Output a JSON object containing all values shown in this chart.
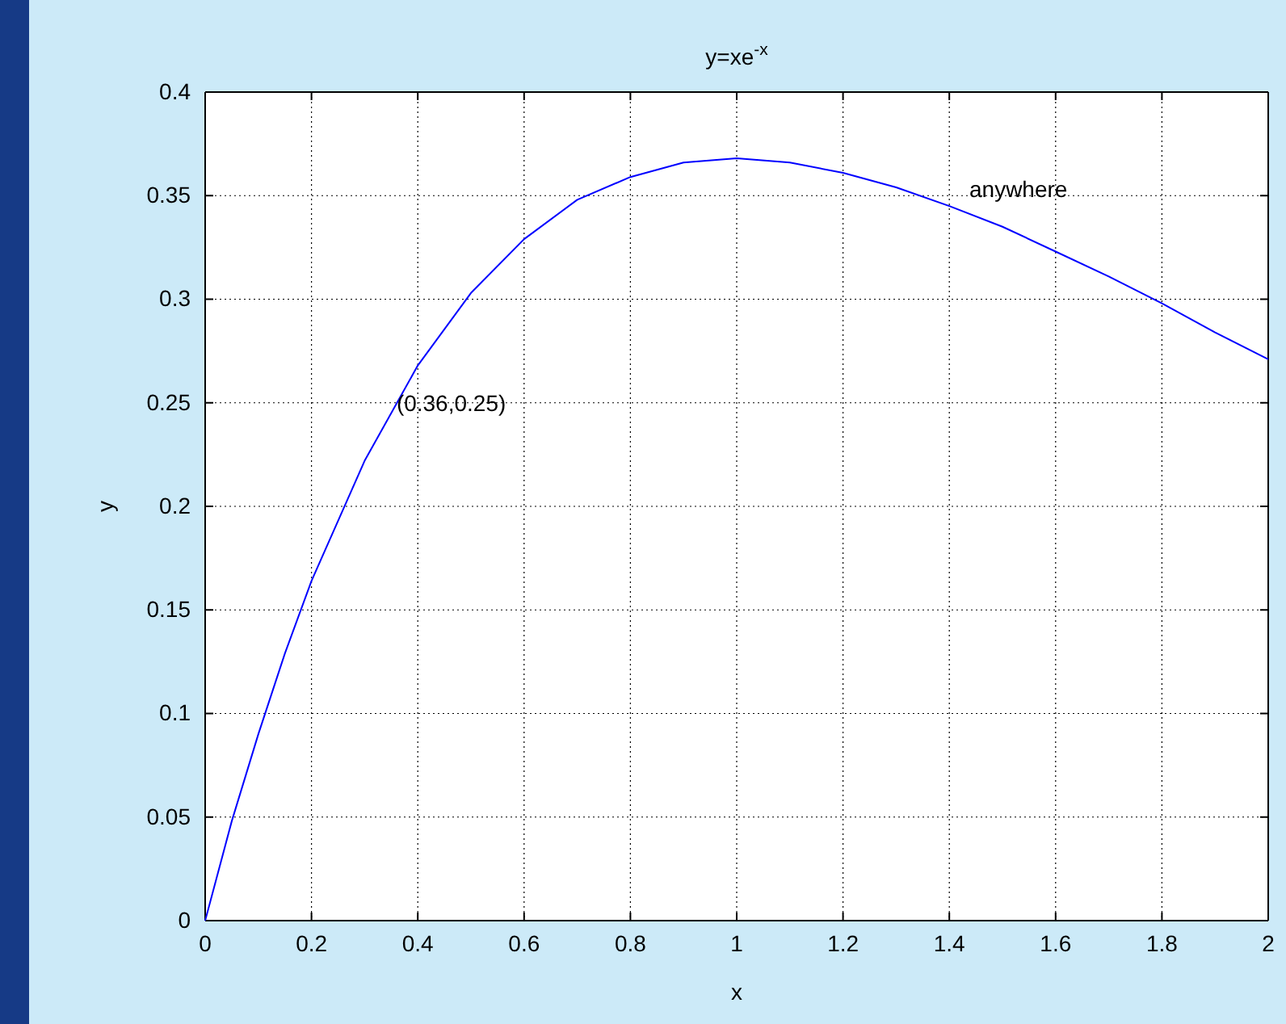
{
  "chart_data": {
    "type": "line",
    "title": "y=xe$^{-x}$",
    "xlabel": "x",
    "ylabel": "y",
    "x": [
      0,
      0.05,
      0.1,
      0.15,
      0.2,
      0.3,
      0.4,
      0.5,
      0.6,
      0.7,
      0.8,
      0.9,
      1,
      1.1,
      1.2,
      1.3,
      1.4,
      1.5,
      1.6,
      1.7,
      1.8,
      1.9,
      2
    ],
    "series": [
      {
        "color": "#0000ff",
        "values": [
          0,
          0.048,
          0.09,
          0.129,
          0.164,
          0.222,
          0.268,
          0.303,
          0.329,
          0.348,
          0.359,
          0.366,
          0.368,
          0.366,
          0.361,
          0.354,
          0.345,
          0.335,
          0.323,
          0.311,
          0.298,
          0.284,
          0.271
        ]
      }
    ],
    "xlim": [
      0,
      2
    ],
    "xticks": [
      0,
      0.2,
      0.4,
      0.6,
      0.8,
      1,
      1.2,
      1.4,
      1.6,
      1.8,
      2
    ],
    "ylim": [
      0,
      0.4
    ],
    "yticks": [
      0,
      0.05,
      0.1,
      0.15,
      0.2,
      0.25,
      0.3,
      0.35,
      0.4
    ],
    "grid": true,
    "marker": "none",
    "line_style": "solid",
    "annotations": [
      {
        "text": "(0.36,0.25)",
        "x": 0.36,
        "y": 0.25
      },
      "anywhere"
    ]
  }
}
